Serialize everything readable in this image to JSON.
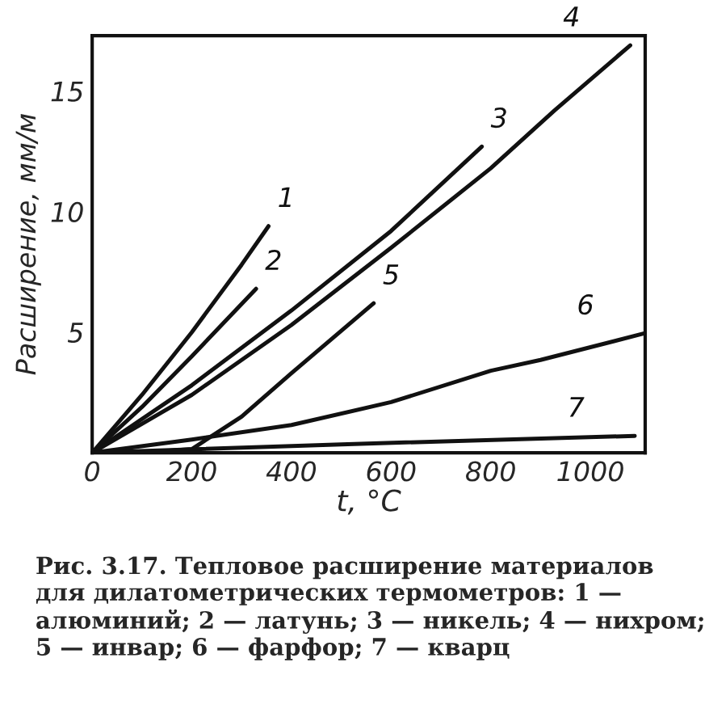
{
  "chart_data": {
    "type": "line",
    "xlabel": "t, °C",
    "ylabel": "Расширение, мм/м",
    "xlim": [
      0,
      1110
    ],
    "ylim": [
      0,
      17.3
    ],
    "xticks": [
      0,
      200,
      400,
      600,
      800,
      1000
    ],
    "yticks": [
      5,
      10,
      15
    ],
    "grid": false,
    "legend": false,
    "marker": "none",
    "line_style": "solid",
    "series": [
      {
        "name": "1",
        "color": "#111111",
        "x": [
          0,
          100,
          200,
          300,
          354
        ],
        "values": [
          0,
          2.4,
          5.0,
          7.8,
          9.4
        ]
      },
      {
        "name": "2",
        "color": "#111111",
        "x": [
          0,
          100,
          200,
          329
        ],
        "values": [
          0,
          1.9,
          4.0,
          6.8
        ]
      },
      {
        "name": "3",
        "color": "#111111",
        "x": [
          0,
          200,
          400,
          600,
          782
        ],
        "values": [
          0,
          2.8,
          5.9,
          9.2,
          12.7
        ]
      },
      {
        "name": "4",
        "color": "#111111",
        "x": [
          0,
          200,
          400,
          600,
          800,
          928,
          1080
        ],
        "values": [
          0,
          2.4,
          5.3,
          8.5,
          11.8,
          14.2,
          16.9
        ]
      },
      {
        "name": "5",
        "color": "#111111",
        "x": [
          0,
          100,
          200,
          300,
          400,
          565
        ],
        "values": [
          0,
          0,
          0.15,
          1.5,
          3.3,
          6.2
        ]
      },
      {
        "name": "6",
        "color": "#111111",
        "x": [
          0,
          200,
          400,
          600,
          800,
          900,
          1108
        ],
        "values": [
          0,
          0.55,
          1.15,
          2.1,
          3.4,
          3.85,
          4.95
        ]
      },
      {
        "name": "7",
        "color": "#111111",
        "x": [
          0,
          500,
          1089
        ],
        "values": [
          0,
          0.35,
          0.7
        ]
      }
    ],
    "annotations": [
      "Рис. 3.17. Тепловое расширение материалов для дилатометрических термометров: 1 — алюминий; 2 — латунь; 3 — никель; 4 — нихром; 5 — инвар; 6 — фарфор; 7 — кварц"
    ]
  }
}
